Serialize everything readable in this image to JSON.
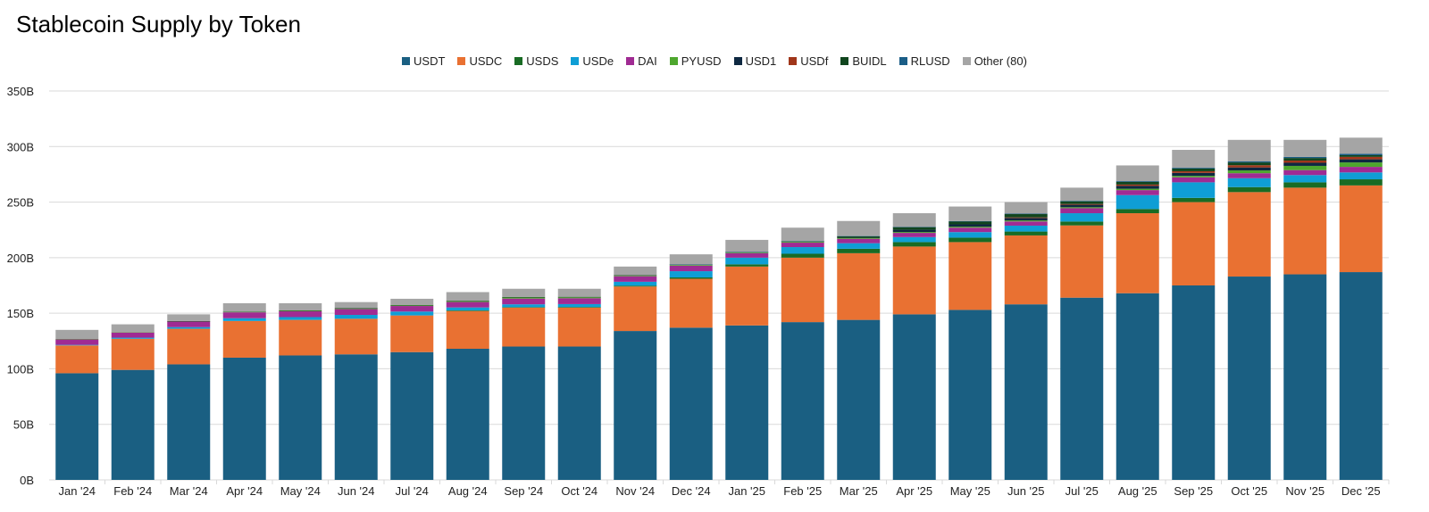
{
  "chart_data": {
    "type": "bar",
    "stacked": true,
    "title": "Stablecoin Supply by Token",
    "xlabel": "",
    "ylabel": "",
    "ylim": [
      0,
      350
    ],
    "yticks": [
      "0B",
      "50B",
      "100B",
      "150B",
      "200B",
      "250B",
      "300B",
      "350B"
    ],
    "grid": true,
    "legend_position": "top",
    "unit": "B",
    "categories": [
      "Jan '24",
      "Feb '24",
      "Mar '24",
      "Apr '24",
      "May '24",
      "Jun '24",
      "Jul '24",
      "Aug '24",
      "Sep '24",
      "Oct '24",
      "Nov '24",
      "Dec '24",
      "Jan '25",
      "Feb '25",
      "Mar '25",
      "Apr '25",
      "May '25",
      "Jun '25",
      "Jul '25",
      "Aug '25",
      "Sep '25",
      "Oct '25",
      "Nov '25",
      "Dec '25"
    ],
    "series": [
      {
        "name": "USDT",
        "color": "#1a5f82",
        "values": [
          96,
          99,
          104,
          110,
          112,
          113,
          115,
          118,
          120,
          120,
          134,
          137,
          139,
          142,
          144,
          149,
          153,
          158,
          164,
          168,
          175,
          183,
          185,
          187
        ]
      },
      {
        "name": "USDC",
        "color": "#e97132",
        "values": [
          25,
          28,
          32,
          33,
          32,
          32,
          33,
          34,
          35,
          35,
          40,
          44,
          53,
          58,
          60,
          61,
          61,
          62,
          65,
          72,
          75,
          76,
          78,
          78
        ]
      },
      {
        "name": "USDS",
        "color": "#196b24",
        "values": [
          0,
          0,
          0,
          0,
          0,
          0,
          0,
          0.5,
          0.5,
          0.6,
          0.8,
          1.2,
          2,
          3.5,
          4,
          4,
          4,
          3.5,
          3.5,
          3.8,
          3.8,
          4.5,
          4.8,
          5.5
        ]
      },
      {
        "name": "USDe",
        "color": "#0f9ed5",
        "values": [
          0.5,
          1,
          1.5,
          2.5,
          2.5,
          3.5,
          3.5,
          2.7,
          2.5,
          2.6,
          3.5,
          5.6,
          6,
          6,
          5,
          4.5,
          5,
          5.3,
          7.5,
          12.5,
          14,
          8,
          6.5,
          6.2
        ]
      },
      {
        "name": "DAI",
        "color": "#a02b93",
        "values": [
          5,
          4.7,
          5,
          5.3,
          5.2,
          5.2,
          5,
          4.9,
          5.2,
          5.3,
          5,
          5,
          4,
          4,
          4,
          3.8,
          4,
          3.8,
          4.5,
          4.5,
          4.5,
          4.5,
          4.5,
          5
        ]
      },
      {
        "name": "PYUSD",
        "color": "#4ea72e",
        "values": [
          0.3,
          0.3,
          0.4,
          0.4,
          0.4,
          0.4,
          0.5,
          0.7,
          0.9,
          0.8,
          0.5,
          0.6,
          0.5,
          0.7,
          0.6,
          0.8,
          0.9,
          0.9,
          0.9,
          1.2,
          1.3,
          2.5,
          3.8,
          4
        ]
      },
      {
        "name": "USD1",
        "color": "#0e2841",
        "values": [
          0,
          0,
          0,
          0,
          0,
          0,
          0,
          0,
          0,
          0,
          0,
          0,
          0,
          0,
          0,
          2,
          2.1,
          2.2,
          2.2,
          2.6,
          2.7,
          2.7,
          2.8,
          2.8
        ]
      },
      {
        "name": "USDf",
        "color": "#a0361a",
        "values": [
          0,
          0,
          0,
          0,
          0,
          0,
          0,
          0,
          0,
          0,
          0,
          0,
          0,
          0,
          0,
          0,
          0,
          0.6,
          0.7,
          1.2,
          1.5,
          2,
          2,
          2.2
        ]
      },
      {
        "name": "BUIDL",
        "color": "#10451e",
        "values": [
          0,
          0,
          0.1,
          0.3,
          0.4,
          0.5,
          0.5,
          0.5,
          0.5,
          0.5,
          0.4,
          0.4,
          0.6,
          0.6,
          1.7,
          2.5,
          2.7,
          2.9,
          2.4,
          2.5,
          2.4,
          2.5,
          2.3,
          1.5
        ]
      },
      {
        "name": "RLUSD",
        "color": "#1b5e87",
        "values": [
          0,
          0,
          0,
          0,
          0,
          0,
          0,
          0,
          0,
          0,
          0,
          0.1,
          0.1,
          0.1,
          0.1,
          0.1,
          0.2,
          0.4,
          0.5,
          0.6,
          0.7,
          0.9,
          1,
          1.3
        ]
      },
      {
        "name": "Other (80)",
        "color": "#a5a5a5",
        "values": [
          8.2,
          7,
          6,
          7.5,
          6.5,
          5.4,
          5.5,
          7.7,
          7.4,
          7.2,
          7.8,
          9.1,
          10.8,
          12.1,
          13.6,
          12.3,
          13.1,
          10.4,
          11.8,
          14.1,
          16.1,
          19.4,
          15.3,
          14.5
        ]
      }
    ]
  }
}
